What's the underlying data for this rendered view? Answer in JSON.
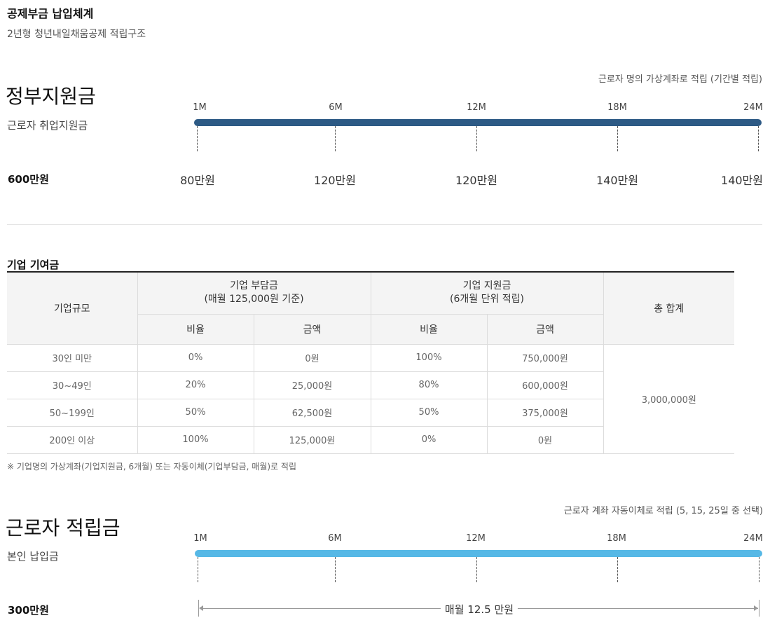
{
  "header": {
    "title": "공제부금 납입체계",
    "subtitle": "2년형 청년내일채움공제 적립구조"
  },
  "gov": {
    "title": "정부지원금",
    "subtitle": "근로자 취업지원금",
    "note": "근로자 명의 가상계좌로 적립 (기간별 적립)",
    "total": "600만원",
    "bar_color": "#2d5a85",
    "milestones": [
      {
        "label": "1M",
        "amount": "80만원"
      },
      {
        "label": "6M",
        "amount": "120만원"
      },
      {
        "label": "12M",
        "amount": "120만원"
      },
      {
        "label": "18M",
        "amount": "140만원"
      },
      {
        "label": "24M",
        "amount": "140만원"
      }
    ]
  },
  "company": {
    "title": "기업 기여금",
    "headers": {
      "size": "기업규모",
      "burden": "기업 부담금\n(매월 125,000원 기준)",
      "support": "기업 지원금\n(6개월 단위 적립)",
      "total": "총 합계",
      "ratio": "비율",
      "amount": "금액"
    },
    "rows": [
      {
        "size": "30인 미만",
        "burden_ratio": "0%",
        "burden_amount": "0원",
        "support_ratio": "100%",
        "support_amount": "750,000원"
      },
      {
        "size": "30~49인",
        "burden_ratio": "20%",
        "burden_amount": "25,000원",
        "support_ratio": "80%",
        "support_amount": "600,000원"
      },
      {
        "size": "50~199인",
        "burden_ratio": "50%",
        "burden_amount": "62,500원",
        "support_ratio": "50%",
        "support_amount": "375,000원"
      },
      {
        "size": "200인 이상",
        "burden_ratio": "100%",
        "burden_amount": "125,000원",
        "support_ratio": "0%",
        "support_amount": "0원"
      }
    ],
    "grand_total": "3,000,000원",
    "note": "※ 기업명의 가상계좌(기업지원금, 6개월) 또는 자동이체(기업부담금, 매월)로 적립"
  },
  "worker": {
    "title": "근로자 적립금",
    "subtitle": "본인 납입금",
    "note": "근로자 계좌 자동이체로 적립 (5, 15, 25일 중 선택)",
    "total": "300만원",
    "bar_color": "#56b8e6",
    "milestones": [
      "1M",
      "6M",
      "12M",
      "18M",
      "24M"
    ],
    "monthly": "매월 12.5 만원"
  }
}
